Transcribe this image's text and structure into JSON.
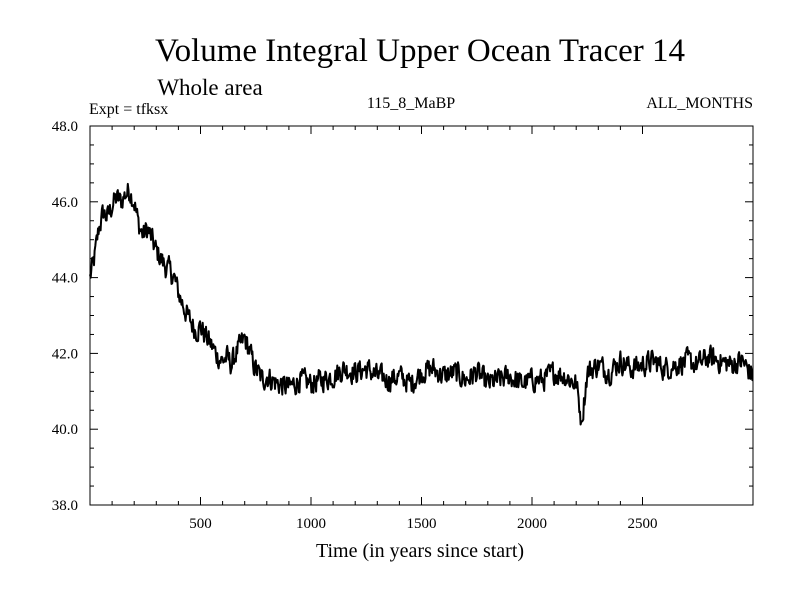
{
  "chart_data": {
    "type": "line",
    "title": "Volume Integral Upper Ocean Tracer 14",
    "subtitle": "Whole area",
    "header_left": "Expt = tfksx",
    "header_center": "115_8_MaBP",
    "header_right": "ALL_MONTHS",
    "xlabel": "Time (in years since start)",
    "ylabel": "",
    "xlim": [
      0,
      3000
    ],
    "ylim": [
      38.0,
      48.0
    ],
    "xticks": [
      500,
      1000,
      1500,
      2000,
      2500
    ],
    "yticks": [
      38.0,
      40.0,
      42.0,
      44.0,
      46.0,
      48.0
    ],
    "ytick_labels": [
      "38.0",
      "40.0",
      "42.0",
      "44.0",
      "46.0",
      "48.0"
    ],
    "line_color": "#000000",
    "series": [
      {
        "name": "tracer14",
        "x": [
          0,
          20,
          40,
          60,
          80,
          100,
          120,
          140,
          160,
          180,
          200,
          220,
          240,
          260,
          280,
          300,
          320,
          340,
          360,
          380,
          400,
          420,
          440,
          460,
          480,
          500,
          520,
          540,
          560,
          580,
          600,
          620,
          640,
          660,
          680,
          700,
          720,
          740,
          760,
          780,
          800,
          850,
          900,
          950,
          1000,
          1050,
          1100,
          1150,
          1200,
          1250,
          1300,
          1350,
          1400,
          1450,
          1500,
          1550,
          1600,
          1650,
          1700,
          1750,
          1800,
          1850,
          1900,
          1950,
          2000,
          2050,
          2100,
          2150,
          2200,
          2225,
          2250,
          2300,
          2350,
          2400,
          2450,
          2500,
          2550,
          2600,
          2650,
          2700,
          2750,
          2800,
          2850,
          2900,
          2950,
          3000
        ],
        "values": [
          44.0,
          44.5,
          45.3,
          45.7,
          45.6,
          45.9,
          46.1,
          46.0,
          46.2,
          46.3,
          46.0,
          45.4,
          45.1,
          45.3,
          45.0,
          44.7,
          44.5,
          44.3,
          44.2,
          44.0,
          43.6,
          43.3,
          43.0,
          42.8,
          42.6,
          42.7,
          42.5,
          42.3,
          42.1,
          41.9,
          41.8,
          41.9,
          41.7,
          42.0,
          42.2,
          42.4,
          42.1,
          41.7,
          41.5,
          41.3,
          41.4,
          41.2,
          41.1,
          41.3,
          41.2,
          41.3,
          41.4,
          41.6,
          41.5,
          41.6,
          41.4,
          41.3,
          41.4,
          41.2,
          41.5,
          41.6,
          41.4,
          41.5,
          41.3,
          41.5,
          41.2,
          41.3,
          41.4,
          41.2,
          41.3,
          41.3,
          41.5,
          41.4,
          41.2,
          40.2,
          41.5,
          41.7,
          41.5,
          41.8,
          41.6,
          41.7,
          41.8,
          41.6,
          41.7,
          41.8,
          41.7,
          41.9,
          41.8,
          41.7,
          41.8,
          41.4
        ]
      }
    ]
  }
}
